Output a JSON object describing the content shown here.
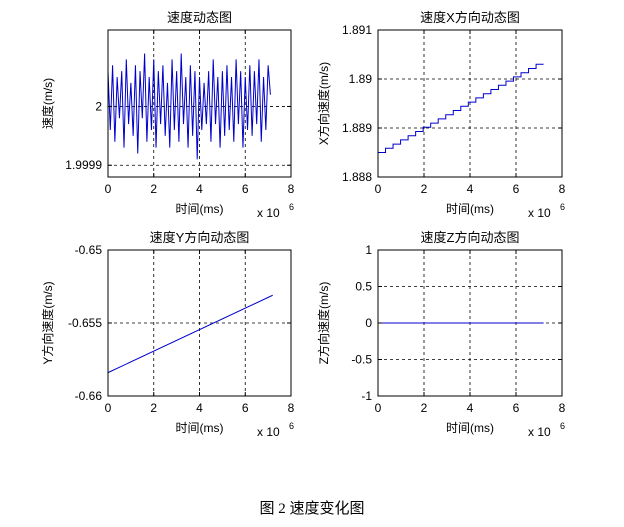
{
  "figure_caption": "图 2  速度变化图",
  "chart_data": [
    {
      "type": "line",
      "title": "速度动态图",
      "xlabel": "时间(ms)",
      "ylabel": "速度(m/s)",
      "x_multiplier": "x 10",
      "x_exponent": "6",
      "xlim": [
        0,
        8
      ],
      "ylim": [
        1.99988,
        2.00013
      ],
      "xticks": [
        0,
        2,
        4,
        6,
        8
      ],
      "xtick_labels": [
        "0",
        "2",
        "4",
        "6",
        "8"
      ],
      "yticks": [
        1.9999,
        2.0
      ],
      "ytick_labels": [
        "1.9999",
        "2"
      ],
      "grid": true,
      "line_color": "#0000cc",
      "series": [
        {
          "x": [
            0.0,
            0.1,
            0.2,
            0.3,
            0.4,
            0.5,
            0.6,
            0.7,
            0.8,
            0.9,
            1.0,
            1.1,
            1.2,
            1.3,
            1.4,
            1.5,
            1.6,
            1.7,
            1.8,
            1.9,
            2.0,
            2.1,
            2.2,
            2.3,
            2.4,
            2.5,
            2.6,
            2.7,
            2.8,
            2.9,
            3.0,
            3.1,
            3.2,
            3.3,
            3.4,
            3.5,
            3.6,
            3.7,
            3.8,
            3.9,
            4.0,
            4.1,
            4.2,
            4.3,
            4.4,
            4.5,
            4.6,
            4.7,
            4.8,
            4.9,
            5.0,
            5.1,
            5.2,
            5.3,
            5.4,
            5.5,
            5.6,
            5.7,
            5.8,
            5.9,
            6.0,
            6.1,
            6.2,
            6.3,
            6.4,
            6.5,
            6.6,
            6.7,
            6.8,
            6.9,
            7.0,
            7.1
          ],
          "y": [
            2.00006,
            1.99996,
            2.00007,
            1.99994,
            2.00005,
            1.99998,
            2.00006,
            1.99993,
            2.00008,
            1.99997,
            2.00004,
            1.99995,
            2.00007,
            1.99992,
            2.00006,
            1.99998,
            2.00009,
            1.99994,
            2.00005,
            1.99996,
            2.00008,
            1.99993,
            2.00006,
            1.99997,
            2.00007,
            1.99995,
            2.00004,
            1.99993,
            2.00008,
            1.99996,
            2.00006,
            1.99994,
            2.00009,
            1.99997,
            2.00005,
            1.99993,
            2.00007,
            1.99995,
            2.00006,
            1.99991,
            2.00005,
            1.99996,
            2.00004,
            1.99997,
            2.00006,
            1.99994,
            2.00008,
            1.99997,
            2.00005,
            1.99993,
            2.00006,
            1.99995,
            2.00007,
            1.99996,
            2.00005,
            1.99994,
            2.00008,
            1.99997,
            2.00006,
            1.99993,
            2.00005,
            1.99996,
            2.00007,
            1.99995,
            2.00006,
            1.99997,
            2.00008,
            1.99994,
            2.00005,
            1.99996,
            2.00007,
            2.00002
          ]
        }
      ]
    },
    {
      "type": "line",
      "title": "速度X方向动态图",
      "xlabel": "时间(ms)",
      "ylabel": "X方向速度(m/s)",
      "x_multiplier": "x 10",
      "x_exponent": "6",
      "xlim": [
        0,
        8
      ],
      "ylim": [
        1.888,
        1.891
      ],
      "xticks": [
        0,
        2,
        4,
        6,
        8
      ],
      "xtick_labels": [
        "0",
        "2",
        "4",
        "6",
        "8"
      ],
      "yticks": [
        1.888,
        1.889,
        1.89,
        1.891
      ],
      "ytick_labels": [
        "1.888",
        "1.889",
        "1.89",
        "1.891"
      ],
      "grid": true,
      "line_color": "#0000cc",
      "series": [
        {
          "x": [
            0.0,
            7.2
          ],
          "y": [
            1.8885,
            1.8903
          ],
          "steps": 22
        }
      ]
    },
    {
      "type": "line",
      "title": "速度Y方向动态图",
      "xlabel": "时间(ms)",
      "ylabel": "Y方向速度(m/s)",
      "x_multiplier": "x 10",
      "x_exponent": "6",
      "xlim": [
        0,
        8
      ],
      "ylim": [
        -0.66,
        -0.65
      ],
      "xticks": [
        0,
        2,
        4,
        6,
        8
      ],
      "xtick_labels": [
        "0",
        "2",
        "4",
        "6",
        "8"
      ],
      "yticks": [
        -0.66,
        -0.655,
        -0.65
      ],
      "ytick_labels": [
        "-0.66",
        "-0.655",
        "-0.65"
      ],
      "grid": true,
      "line_color": "#0000cc",
      "series": [
        {
          "x": [
            0.0,
            7.2
          ],
          "y": [
            -0.6584,
            -0.6531
          ]
        }
      ]
    },
    {
      "type": "line",
      "title": "速度Z方向动态图",
      "xlabel": "时间(ms)",
      "ylabel": "Z方向速度(m/s)",
      "x_multiplier": "x 10",
      "x_exponent": "6",
      "xlim": [
        0,
        8
      ],
      "ylim": [
        -1,
        1
      ],
      "xticks": [
        0,
        2,
        4,
        6,
        8
      ],
      "xtick_labels": [
        "0",
        "2",
        "4",
        "6",
        "8"
      ],
      "yticks": [
        -1,
        -0.5,
        0,
        0.5,
        1
      ],
      "ytick_labels": [
        "-1",
        "-0.5",
        "0",
        "0.5",
        "1"
      ],
      "grid": true,
      "line_color": "#0000cc",
      "series": [
        {
          "x": [
            0.0,
            7.2
          ],
          "y": [
            0,
            0
          ]
        }
      ]
    }
  ]
}
